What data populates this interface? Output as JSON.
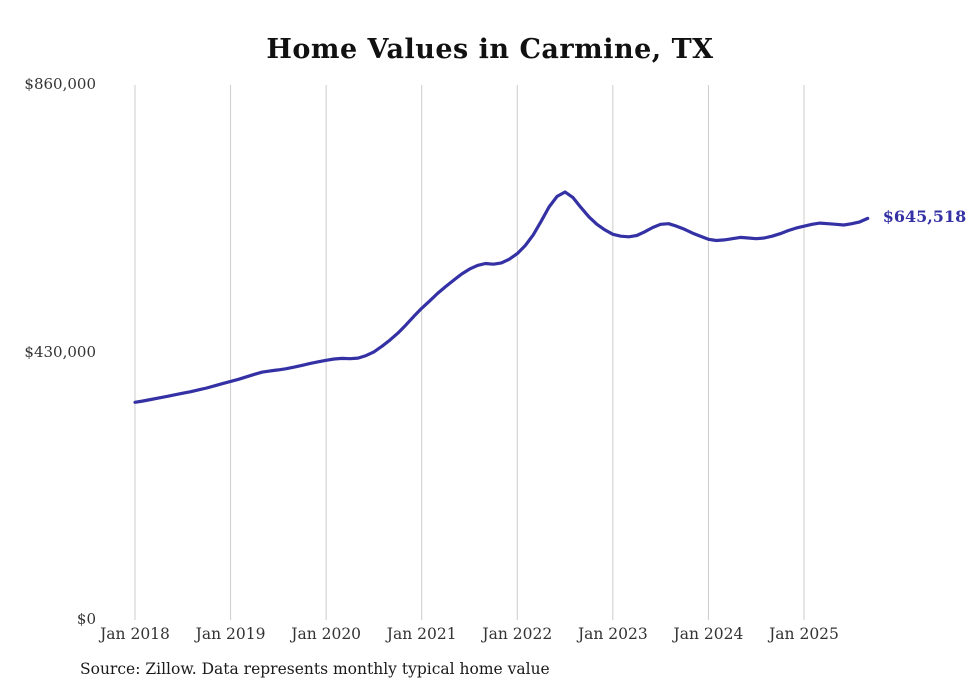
{
  "chart_data": {
    "type": "line",
    "title": "Home Values in Carmine, TX",
    "source_note": "Source: Zillow. Data represents monthly typical home value",
    "x_start": "Jan 2018",
    "x_end": "Sep 2025",
    "x_unit": "month",
    "x_tick_labels": [
      "Jan 2018",
      "Jan 2019",
      "Jan 2020",
      "Jan 2021",
      "Jan 2022",
      "Jan 2023",
      "Jan 2024",
      "Jan 2025"
    ],
    "x_tick_month_indices": [
      0,
      12,
      24,
      36,
      48,
      60,
      72,
      84
    ],
    "y_ticks": [
      {
        "label": "$0",
        "value": 0
      },
      {
        "label": "$430,000",
        "value": 430000
      },
      {
        "label": "$860,000",
        "value": 860000
      }
    ],
    "ylim": [
      0,
      860000
    ],
    "grid": "vertical",
    "legend": "none",
    "line_color": "#3431a5",
    "gridline_color": "#cccccc",
    "end_label": "$645,518",
    "latest_value": 645518,
    "series": [
      {
        "name": "Typical home value",
        "cadence": "monthly",
        "values": [
          350000,
          352000,
          354500,
          357000,
          359500,
          362000,
          364500,
          367000,
          370000,
          373000,
          376500,
          380000,
          383500,
          387000,
          391000,
          395000,
          398500,
          400500,
          402000,
          404000,
          406500,
          409500,
          412500,
          415000,
          417500,
          419500,
          420500,
          420000,
          421000,
          425000,
          431000,
          440000,
          450000,
          461000,
          474000,
          488000,
          501000,
          513000,
          525000,
          536000,
          546000,
          556000,
          564000,
          570000,
          573000,
          572000,
          574000,
          580000,
          589000,
          602000,
          619000,
          641000,
          664000,
          681000,
          688000,
          679000,
          663000,
          648000,
          636000,
          627000,
          620000,
          617000,
          616000,
          618000,
          624000,
          631000,
          636000,
          637000,
          633000,
          628000,
          622000,
          617000,
          612000,
          610000,
          611000,
          613000,
          615000,
          614000,
          613000,
          614000,
          617000,
          621000,
          626000,
          630000,
          633000,
          636000,
          638000,
          637000,
          636000,
          635000,
          637000,
          640000,
          645518
        ]
      }
    ]
  }
}
